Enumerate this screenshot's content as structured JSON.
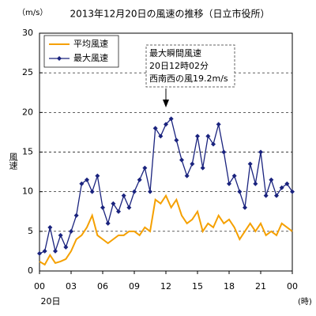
{
  "chart_data": {
    "type": "line",
    "title": "2013年12月20日の風速の推移（日立市役所）",
    "yunit": "（m/s）",
    "ylabel": "風速",
    "xlabel": "(時)",
    "x_sublabel": "20日",
    "annotation": [
      "最大瞬間風速",
      "20日12時02分",
      "西南西の風19.2m/s"
    ],
    "annotation_x": 12,
    "x": [
      0,
      0.5,
      1,
      1.5,
      2,
      2.5,
      3,
      3.5,
      4,
      4.5,
      5,
      5.5,
      6,
      6.5,
      7,
      7.5,
      8,
      8.5,
      9,
      9.5,
      10,
      10.5,
      11,
      11.5,
      12,
      12.5,
      13,
      13.5,
      14,
      14.5,
      15,
      15.5,
      16,
      16.5,
      17,
      17.5,
      18,
      18.5,
      19,
      19.5,
      20,
      20.5,
      21,
      21.5,
      22,
      22.5,
      23,
      23.5,
      24
    ],
    "series": [
      {
        "name": "平均風速",
        "color": "#f5a000",
        "values": [
          1.2,
          0.8,
          2,
          1,
          1.2,
          1.5,
          2.5,
          4,
          4.5,
          5.5,
          7,
          4.5,
          4,
          3.5,
          4,
          4.5,
          4.5,
          5,
          5,
          4.5,
          5.5,
          5,
          9,
          8.5,
          9.5,
          8,
          9,
          7,
          6,
          6.5,
          7.5,
          5,
          6,
          5.5,
          7,
          6,
          6.5,
          5.5,
          4,
          5,
          6,
          5,
          6,
          4.5,
          5,
          4.5,
          6,
          5.5,
          5
        ]
      },
      {
        "name": "最大風速",
        "color": "#1a237e",
        "values": [
          2.2,
          2.5,
          5.5,
          2.5,
          4.5,
          3,
          5,
          7,
          11,
          11.5,
          10,
          12,
          8,
          6,
          8.5,
          7.5,
          9.5,
          8,
          10,
          11.5,
          13,
          10,
          18,
          17,
          18.5,
          19.2,
          16.5,
          14,
          12,
          13.5,
          17,
          13,
          17,
          16,
          18.5,
          15,
          11,
          12,
          10,
          8,
          13.5,
          11,
          15,
          9.5,
          11.5,
          9.5,
          10.5,
          11,
          10
        ]
      }
    ],
    "xlim": [
      0,
      24
    ],
    "xticks": [
      {
        "value": 0,
        "label": "00"
      },
      {
        "value": 3,
        "label": "03"
      },
      {
        "value": 6,
        "label": "06"
      },
      {
        "value": 9,
        "label": "09"
      },
      12,
      15,
      18,
      21,
      {
        "value": 24,
        "label": "00"
      }
    ],
    "ylim": [
      0,
      30
    ],
    "yticks": [
      0,
      5,
      10,
      15,
      20,
      25,
      30
    ],
    "grid": true
  }
}
